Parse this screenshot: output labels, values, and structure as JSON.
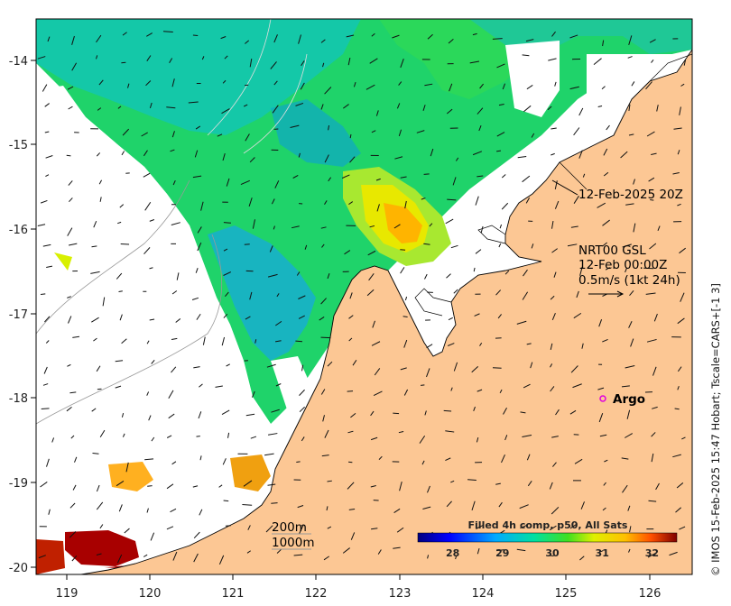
{
  "x_ticks": [
    "119",
    "120",
    "121",
    "122",
    "123",
    "124",
    "125",
    "126"
  ],
  "y_ticks": [
    "-14",
    "-15",
    "-16",
    "-17",
    "-18",
    "-19",
    "-20"
  ],
  "annotations": {
    "date_label": "12-Feb-2025 20Z",
    "gsl_line1": "NRT00 GSL",
    "gsl_line2": "12-Feb 00:00Z",
    "gsl_line3": "0.5m/s (1kt 24h)",
    "argo_label": "Argo",
    "depth_200": "200m",
    "depth_1000": "1000m"
  },
  "colorbar": {
    "title": "Filled 4h comp, p50, All Sats",
    "labels": [
      "28",
      "29",
      "30",
      "31",
      "32"
    ],
    "range": [
      27.3,
      32.5
    ]
  },
  "side_text": "© IMOS 15-Feb-2025 15:47 Hobart; Tscale=CARS+[-1 3]",
  "colors": {
    "land": "#fcc794",
    "argo": "#e000e0"
  }
}
